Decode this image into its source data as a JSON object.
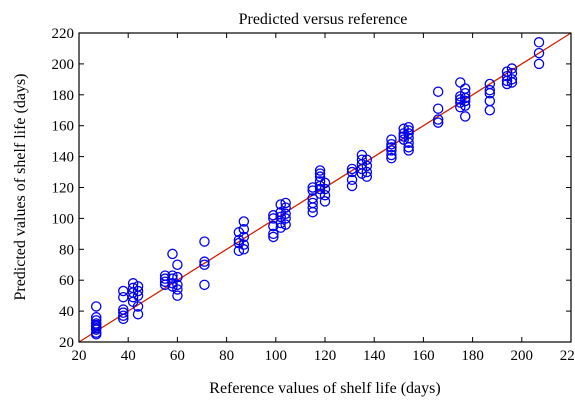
{
  "chart_data": {
    "type": "scatter",
    "title": "Predicted versus reference",
    "xlabel": "Reference values of shelf life (days)",
    "ylabel": "Predicted values of shelf life (days)",
    "xlim": [
      20,
      220
    ],
    "ylim": [
      20,
      220
    ],
    "xticks": [
      20,
      40,
      60,
      80,
      100,
      120,
      140,
      160,
      180,
      200,
      220
    ],
    "yticks": [
      20,
      40,
      60,
      80,
      100,
      120,
      140,
      160,
      180,
      200,
      220
    ],
    "grid": false,
    "legend": false,
    "colors": {
      "points": "#0000ee",
      "reference_line": "#cc2200",
      "axes": "#000000"
    },
    "reference_line": {
      "from": [
        20,
        20
      ],
      "to": [
        220,
        220
      ]
    },
    "points": [
      {
        "x": 27,
        "y": 43
      },
      {
        "x": 27,
        "y": 36
      },
      {
        "x": 27,
        "y": 34
      },
      {
        "x": 27,
        "y": 32
      },
      {
        "x": 27,
        "y": 31
      },
      {
        "x": 27,
        "y": 30
      },
      {
        "x": 27,
        "y": 29
      },
      {
        "x": 27,
        "y": 28
      },
      {
        "x": 27,
        "y": 26
      },
      {
        "x": 27,
        "y": 25
      },
      {
        "x": 38,
        "y": 53
      },
      {
        "x": 38,
        "y": 49
      },
      {
        "x": 38,
        "y": 41
      },
      {
        "x": 38,
        "y": 39
      },
      {
        "x": 38,
        "y": 37
      },
      {
        "x": 38,
        "y": 35
      },
      {
        "x": 42,
        "y": 58
      },
      {
        "x": 42,
        "y": 55
      },
      {
        "x": 42,
        "y": 52
      },
      {
        "x": 42,
        "y": 49
      },
      {
        "x": 42,
        "y": 46
      },
      {
        "x": 44,
        "y": 56
      },
      {
        "x": 44,
        "y": 53
      },
      {
        "x": 44,
        "y": 50
      },
      {
        "x": 44,
        "y": 43
      },
      {
        "x": 44,
        "y": 38
      },
      {
        "x": 55,
        "y": 63
      },
      {
        "x": 55,
        "y": 61
      },
      {
        "x": 55,
        "y": 59
      },
      {
        "x": 55,
        "y": 57
      },
      {
        "x": 58,
        "y": 77
      },
      {
        "x": 58,
        "y": 63
      },
      {
        "x": 58,
        "y": 61
      },
      {
        "x": 58,
        "y": 58
      },
      {
        "x": 58,
        "y": 56
      },
      {
        "x": 60,
        "y": 70
      },
      {
        "x": 60,
        "y": 62
      },
      {
        "x": 60,
        "y": 57
      },
      {
        "x": 60,
        "y": 54
      },
      {
        "x": 60,
        "y": 50
      },
      {
        "x": 71,
        "y": 85
      },
      {
        "x": 71,
        "y": 72
      },
      {
        "x": 71,
        "y": 70
      },
      {
        "x": 71,
        "y": 57
      },
      {
        "x": 85,
        "y": 91
      },
      {
        "x": 85,
        "y": 86
      },
      {
        "x": 85,
        "y": 84
      },
      {
        "x": 85,
        "y": 79
      },
      {
        "x": 87,
        "y": 98
      },
      {
        "x": 87,
        "y": 93
      },
      {
        "x": 87,
        "y": 88
      },
      {
        "x": 87,
        "y": 83
      },
      {
        "x": 87,
        "y": 80
      },
      {
        "x": 99,
        "y": 102
      },
      {
        "x": 99,
        "y": 100
      },
      {
        "x": 99,
        "y": 95
      },
      {
        "x": 99,
        "y": 90
      },
      {
        "x": 99,
        "y": 88
      },
      {
        "x": 102,
        "y": 109
      },
      {
        "x": 102,
        "y": 104
      },
      {
        "x": 102,
        "y": 101
      },
      {
        "x": 102,
        "y": 97
      },
      {
        "x": 102,
        "y": 94
      },
      {
        "x": 104,
        "y": 110
      },
      {
        "x": 104,
        "y": 107
      },
      {
        "x": 104,
        "y": 103
      },
      {
        "x": 104,
        "y": 100
      },
      {
        "x": 104,
        "y": 96
      },
      {
        "x": 115,
        "y": 120
      },
      {
        "x": 115,
        "y": 118
      },
      {
        "x": 115,
        "y": 113
      },
      {
        "x": 115,
        "y": 110
      },
      {
        "x": 115,
        "y": 107
      },
      {
        "x": 115,
        "y": 104
      },
      {
        "x": 118,
        "y": 131
      },
      {
        "x": 118,
        "y": 129
      },
      {
        "x": 118,
        "y": 127
      },
      {
        "x": 118,
        "y": 124
      },
      {
        "x": 118,
        "y": 121
      },
      {
        "x": 118,
        "y": 119
      },
      {
        "x": 118,
        "y": 116
      },
      {
        "x": 120,
        "y": 123
      },
      {
        "x": 120,
        "y": 119
      },
      {
        "x": 120,
        "y": 115
      },
      {
        "x": 120,
        "y": 111
      },
      {
        "x": 131,
        "y": 132
      },
      {
        "x": 131,
        "y": 130
      },
      {
        "x": 131,
        "y": 125
      },
      {
        "x": 131,
        "y": 121
      },
      {
        "x": 135,
        "y": 141
      },
      {
        "x": 135,
        "y": 138
      },
      {
        "x": 135,
        "y": 135
      },
      {
        "x": 135,
        "y": 132
      },
      {
        "x": 135,
        "y": 129
      },
      {
        "x": 137,
        "y": 138
      },
      {
        "x": 137,
        "y": 134
      },
      {
        "x": 137,
        "y": 130
      },
      {
        "x": 137,
        "y": 127
      },
      {
        "x": 147,
        "y": 151
      },
      {
        "x": 147,
        "y": 148
      },
      {
        "x": 147,
        "y": 146
      },
      {
        "x": 147,
        "y": 144
      },
      {
        "x": 147,
        "y": 141
      },
      {
        "x": 147,
        "y": 139
      },
      {
        "x": 152,
        "y": 158
      },
      {
        "x": 152,
        "y": 155
      },
      {
        "x": 152,
        "y": 153
      },
      {
        "x": 152,
        "y": 151
      },
      {
        "x": 154,
        "y": 159
      },
      {
        "x": 154,
        "y": 157
      },
      {
        "x": 154,
        "y": 155
      },
      {
        "x": 154,
        "y": 152
      },
      {
        "x": 154,
        "y": 149
      },
      {
        "x": 154,
        "y": 146
      },
      {
        "x": 154,
        "y": 144
      },
      {
        "x": 166,
        "y": 182
      },
      {
        "x": 166,
        "y": 171
      },
      {
        "x": 166,
        "y": 164
      },
      {
        "x": 166,
        "y": 162
      },
      {
        "x": 175,
        "y": 188
      },
      {
        "x": 175,
        "y": 179
      },
      {
        "x": 175,
        "y": 177
      },
      {
        "x": 175,
        "y": 175
      },
      {
        "x": 175,
        "y": 172
      },
      {
        "x": 177,
        "y": 184
      },
      {
        "x": 177,
        "y": 181
      },
      {
        "x": 177,
        "y": 178
      },
      {
        "x": 177,
        "y": 176
      },
      {
        "x": 177,
        "y": 173
      },
      {
        "x": 177,
        "y": 166
      },
      {
        "x": 187,
        "y": 187
      },
      {
        "x": 187,
        "y": 183
      },
      {
        "x": 187,
        "y": 181
      },
      {
        "x": 187,
        "y": 176
      },
      {
        "x": 187,
        "y": 170
      },
      {
        "x": 194,
        "y": 195
      },
      {
        "x": 194,
        "y": 192
      },
      {
        "x": 194,
        "y": 189
      },
      {
        "x": 194,
        "y": 187
      },
      {
        "x": 196,
        "y": 197
      },
      {
        "x": 196,
        "y": 194
      },
      {
        "x": 196,
        "y": 190
      },
      {
        "x": 196,
        "y": 188
      },
      {
        "x": 207,
        "y": 214
      },
      {
        "x": 207,
        "y": 207
      },
      {
        "x": 207,
        "y": 200
      }
    ]
  }
}
